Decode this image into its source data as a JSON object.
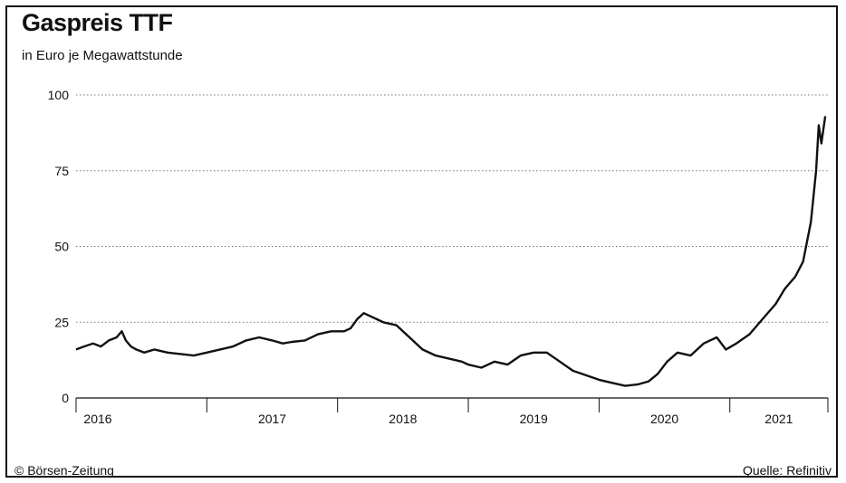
{
  "header": {
    "title": "Gaspreis TTF",
    "subtitle": "in Euro je Megawattstunde"
  },
  "footer": {
    "copyright": "© Börsen-Zeitung",
    "source": "Quelle: Refinitiv"
  },
  "chart_data": {
    "type": "line",
    "title": "Gaspreis TTF",
    "subtitle": "in Euro je Megawattstunde",
    "xlabel": "",
    "ylabel": "",
    "ylim": [
      0,
      100
    ],
    "xlim": [
      2016.0,
      2021.75
    ],
    "yticks": [
      0,
      25,
      50,
      75,
      100
    ],
    "xtick_labels": [
      "2016",
      "2017",
      "2018",
      "2019",
      "2020",
      "2021"
    ],
    "grid": "horizontal dotted",
    "series": [
      {
        "values_x": [
          2016.0,
          2016.06,
          2016.13,
          2016.19,
          2016.25,
          2016.31,
          2016.35,
          2016.38,
          2016.42,
          2016.46,
          2016.52,
          2016.6,
          2016.7,
          2016.8,
          2016.9,
          2017.0,
          2017.1,
          2017.2,
          2017.3,
          2017.4,
          2017.5,
          2017.58,
          2017.65,
          2017.75,
          2017.85,
          2017.95,
          2018.05,
          2018.1,
          2018.15,
          2018.2,
          2018.25,
          2018.3,
          2018.35,
          2018.45,
          2018.55,
          2018.65,
          2018.75,
          2018.85,
          2018.95,
          2019.0,
          2019.1,
          2019.2,
          2019.3,
          2019.4,
          2019.5,
          2019.6,
          2019.7,
          2019.8,
          2019.9,
          2020.0,
          2020.1,
          2020.2,
          2020.3,
          2020.38,
          2020.45,
          2020.52,
          2020.6,
          2020.7,
          2020.8,
          2020.9,
          2020.97,
          2021.05,
          2021.15,
          2021.25,
          2021.35,
          2021.42,
          2021.5,
          2021.56,
          2021.62,
          2021.66,
          2021.68,
          2021.7,
          2021.73
        ],
        "values_y": [
          16,
          17,
          18,
          17,
          19,
          20,
          22,
          19,
          17,
          16,
          15,
          16,
          15,
          14.5,
          14,
          15,
          16,
          17,
          19,
          20,
          19,
          18,
          18.5,
          19,
          21,
          22,
          22,
          23,
          26,
          28,
          27,
          26,
          25,
          24,
          20,
          16,
          14,
          13,
          12,
          11,
          10,
          12,
          11,
          14,
          15,
          15,
          12,
          9,
          7.5,
          6,
          5,
          4,
          4.5,
          5.5,
          8,
          12,
          15,
          14,
          18,
          20,
          16,
          18,
          21,
          26,
          31,
          36,
          40,
          45,
          58,
          75,
          90,
          84,
          93
        ]
      }
    ]
  }
}
